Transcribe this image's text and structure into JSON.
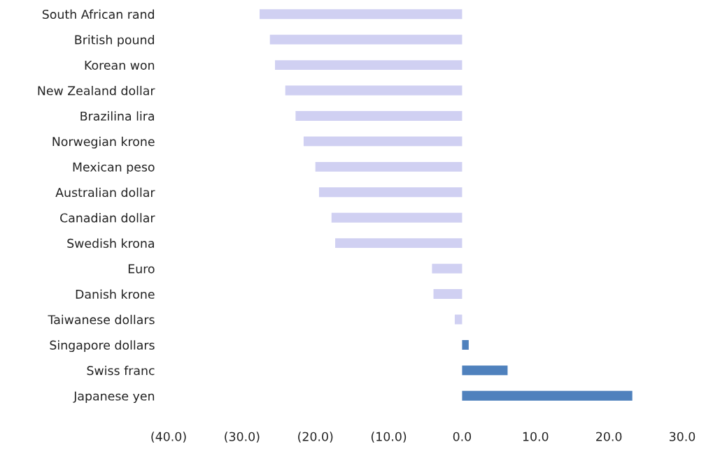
{
  "chart_data": {
    "type": "bar",
    "orientation": "horizontal",
    "categories": [
      "South African rand",
      "British pound",
      "Korean won",
      "New Zealand dollar",
      "Brazilina lira",
      "Norwegian krone",
      "Mexican peso",
      "Australian dollar",
      "Canadian dollar",
      "Swedish krona",
      "Euro",
      "Danish krone",
      "Taiwanese dollars",
      "Singapore dollars",
      "Swiss franc",
      "Japanese yen"
    ],
    "values": [
      -27.6,
      -26.2,
      -25.5,
      -24.1,
      -22.7,
      -21.6,
      -20.0,
      -19.5,
      -17.8,
      -17.3,
      -4.1,
      -3.9,
      -1.0,
      0.9,
      6.2,
      23.2
    ],
    "colors": [
      "#d0d0f2",
      "#d0d0f2",
      "#d0d0f2",
      "#d0d0f2",
      "#d0d0f2",
      "#d0d0f2",
      "#d0d0f2",
      "#d0d0f2",
      "#d0d0f2",
      "#d0d0f2",
      "#d0d0f2",
      "#d0d0f2",
      "#d0d0f2",
      "#4f81bd",
      "#4f81bd",
      "#4f81bd"
    ],
    "xlim": [
      -40,
      30
    ],
    "xticks": [
      {
        "value": -40,
        "label": "(40.0)"
      },
      {
        "value": -30,
        "label": "(30.0)"
      },
      {
        "value": -20,
        "label": "(20.0)"
      },
      {
        "value": -10,
        "label": "(10.0)"
      },
      {
        "value": 0,
        "label": "0.0"
      },
      {
        "value": 10,
        "label": "10.0"
      },
      {
        "value": 20,
        "label": "20.0"
      },
      {
        "value": 30,
        "label": "30.0"
      }
    ],
    "grid": false
  }
}
